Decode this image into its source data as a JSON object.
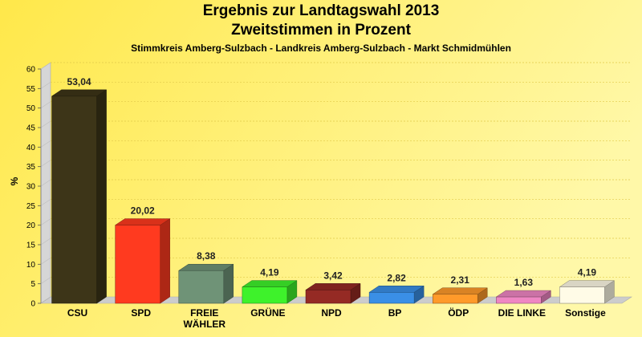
{
  "title": "Ergebnis zur Landtagswahl 2013",
  "title2": "Zweitstimmen in Prozent",
  "subtitle": "Stimmkreis Amberg-Sulzbach - Landkreis Amberg-Sulzbach - Markt Schmidmühlen",
  "chart_data": {
    "type": "bar",
    "title": "Ergebnis zur Landtagswahl 2013 Zweitstimmen in Prozent",
    "subtitle": "Stimmkreis Amberg-Sulzbach - Landkreis Amberg-Sulzbach - Markt Schmidmühlen",
    "ylabel": "%",
    "ylim": [
      0,
      60
    ],
    "yticks": [
      "0",
      "5",
      "10",
      "15",
      "20",
      "25",
      "30",
      "35",
      "40",
      "45",
      "50",
      "55",
      "60"
    ],
    "grid": true,
    "categories": [
      "CSU",
      "SPD",
      "FREIE WÄHLER",
      "GRÜNE",
      "NPD",
      "BP",
      "ÖDP",
      "DIE LINKE",
      "Sonstige"
    ],
    "values": [
      53.04,
      20.02,
      8.38,
      4.19,
      3.42,
      2.82,
      2.31,
      1.63,
      4.19
    ],
    "value_labels": [
      "53,04",
      "20,02",
      "8,38",
      "4,19",
      "3,42",
      "2,82",
      "2,31",
      "1,63",
      "4,19"
    ],
    "colors": [
      "#3d3518",
      "#ff3a1f",
      "#6f9377",
      "#3ef22b",
      "#952a24",
      "#3a8fe6",
      "#ff9a2a",
      "#ef86c3",
      "#fffbe7"
    ]
  }
}
